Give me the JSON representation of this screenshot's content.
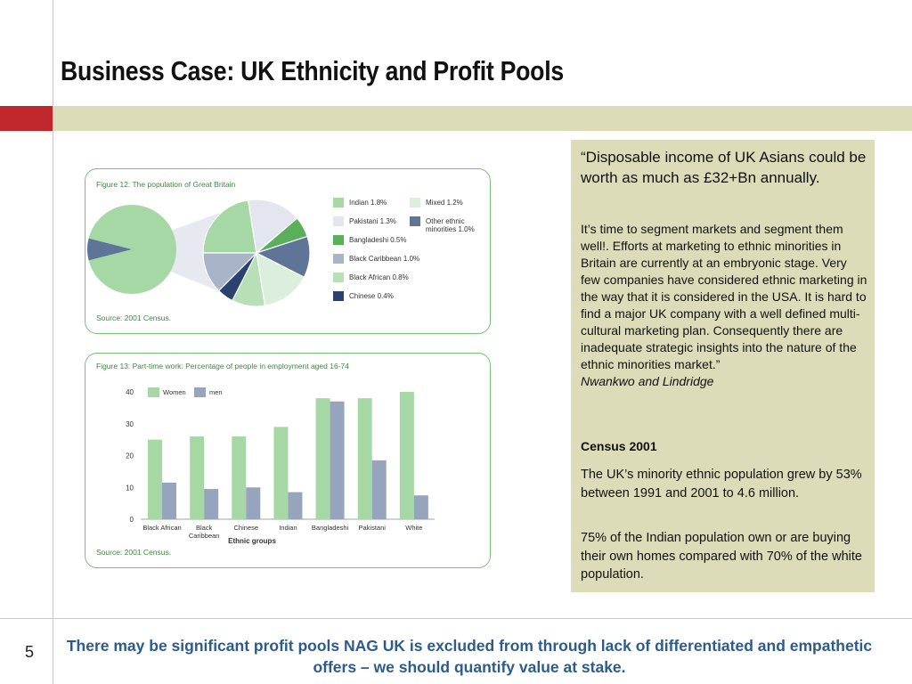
{
  "slide": {
    "title": "Business Case: UK Ethnicity and Profit Pools",
    "page_number": "5",
    "footer": "There may be significant profit pools NAG UK is excluded from through lack of differentiated and empathetic offers – we should quantify value at stake."
  },
  "quote": {
    "headline": "“Disposable income of UK Asians could be worth as much as £32+Bn annually.",
    "body": "It’s time to segment markets and segment them well!. Efforts at marketing to ethnic minorities in Britain are currently at an embryonic stage. Very few companies have considered ethnic marketing in the way that it is considered in the USA. It is hard to find a major UK company with a well defined multi-cultural marketing plan. Consequently there are inadequate strategic insights into the nature of the ethnic minorities market.”",
    "author": "Nwankwo and Lindridge",
    "census_heading": "Census 2001",
    "census_p1": "The UK’s minority ethnic population grew by 53% between 1991 and 2001 to 4.6 million.",
    "census_p2": "75% of the Indian population own or are buying their own homes compared with 70% of the white population."
  },
  "fig1": {
    "title": "Figure 12: The population of Great Britain",
    "source": "Source: 2001 Census."
  },
  "fig2": {
    "title": "Figure 13: Part-time work: Percentage of people in employment aged 16-74",
    "source": "Source: 2001 Census."
  },
  "chart_data": [
    {
      "type": "pie",
      "title": "Figure 12: The population of Great Britain",
      "note": "Main pie shows White vs. minority ethnic share; exploded pie breaks down the minority share.",
      "categories": [
        "Indian 1.8%",
        "Mixed 1.2%",
        "Pakistani 1.3%",
        "Other ethnic minorities 1.0%",
        "Bangladeshi 0.5%",
        "Black Caribbean 1.0%",
        "Black African 0.8%",
        "Chinese 0.4%"
      ],
      "values": [
        1.8,
        1.2,
        1.3,
        1.0,
        0.5,
        1.0,
        0.8,
        0.4
      ],
      "colors": [
        "#a6d8a6",
        "#dcefdc",
        "#e3e6ee",
        "#5e7598",
        "#5aaf5a",
        "#a9b4c8",
        "#b7e0b7",
        "#2a4270"
      ],
      "legend_position": "right"
    },
    {
      "type": "bar",
      "title": "Figure 13: Part-time work: Percentage of people in employment aged 16-74",
      "xlabel": "Ethnic groups",
      "ylabel": "",
      "categories": [
        "Black African",
        "Black Caribbean",
        "Chinese",
        "Indian",
        "Bangladeshi",
        "Pakistani",
        "White"
      ],
      "series": [
        {
          "name": "Women",
          "values": [
            25,
            26,
            26,
            29,
            38,
            38,
            40
          ],
          "color": "#a6d8a6"
        },
        {
          "name": "men",
          "values": [
            11.5,
            9.5,
            10,
            8.5,
            37,
            18.5,
            7.5
          ],
          "color": "#97a4bd"
        }
      ],
      "ylim": [
        0,
        40
      ],
      "yticks": [
        0,
        10,
        20,
        30,
        40
      ],
      "grid": false,
      "legend_position": "top-left"
    }
  ]
}
